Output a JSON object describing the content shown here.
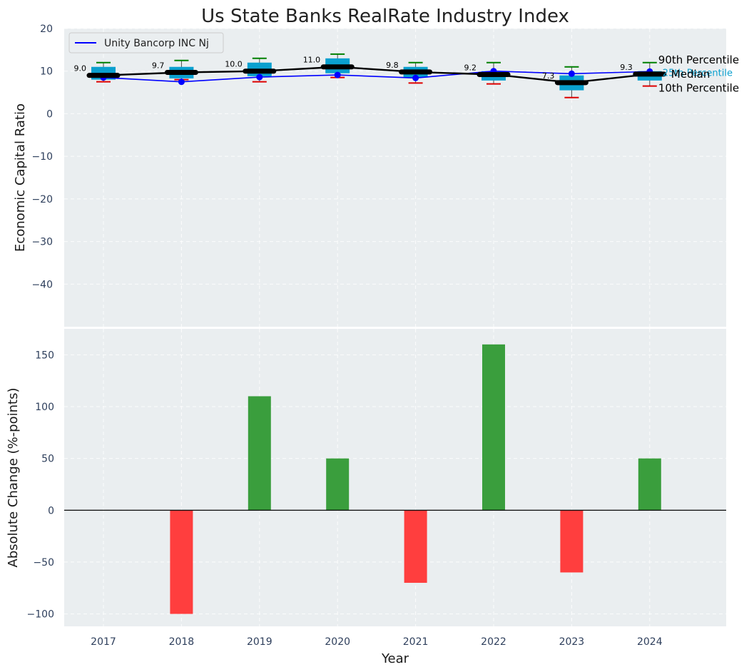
{
  "title": "Us State Banks RealRate Industry Index",
  "colors": {
    "panel_bg": "#eaeef0",
    "box": "#0aa0cf",
    "median_line": "#000000",
    "company_line": "#0000ff",
    "p90_cap": "#008000",
    "p10_cap": "#dd0000",
    "pos_bar": "#3a9e3d",
    "neg_bar": "#ff3e3e",
    "p25_label": "#0aa0cf"
  },
  "chart_data": [
    {
      "type": "box",
      "ylabel": "Economic Capital Ratio",
      "ylim": [
        -50,
        20
      ],
      "yticks": [
        20,
        10,
        0,
        -10,
        -20,
        -30,
        -40
      ],
      "ytick_labels": [
        "20",
        "10",
        "0",
        "−10",
        "−20",
        "−30",
        "−40"
      ],
      "categories": [
        "2017",
        "2018",
        "2019",
        "2020",
        "2021",
        "2022",
        "2023",
        "2024"
      ],
      "median": [
        9.0,
        9.7,
        10.0,
        11.0,
        9.8,
        9.2,
        7.3,
        9.3
      ],
      "median_labels": [
        "9.0",
        "9.7",
        "10.0",
        "11.0",
        "9.8",
        "9.2",
        "7.3",
        "9.3"
      ],
      "q1": [
        8.0,
        8.3,
        8.8,
        9.5,
        8.5,
        7.8,
        5.5,
        7.8
      ],
      "q3": [
        11.0,
        11.0,
        12.0,
        13.0,
        11.0,
        10.0,
        9.0,
        10.0
      ],
      "p10": [
        7.5,
        8.0,
        7.5,
        8.5,
        7.2,
        7.0,
        3.8,
        6.5
      ],
      "p90": [
        12.0,
        12.5,
        13.0,
        14.0,
        12.0,
        12.0,
        11.0,
        12.0
      ],
      "series": [
        {
          "name": "Unity Bancorp INC Nj",
          "values": [
            8.5,
            7.5,
            8.6,
            9.1,
            8.4,
            10.0,
            9.4,
            9.9
          ]
        }
      ],
      "annotations": {
        "p90": "90th Percentile",
        "median": "Median",
        "p25": "25th Percentile",
        "p10": "10th Percentile"
      },
      "legend": "top-left"
    },
    {
      "type": "bar",
      "xlabel": "Year",
      "ylabel": "Absolute Change (%-points)",
      "ylim": [
        -112,
        175
      ],
      "yticks": [
        150,
        100,
        50,
        0,
        -50,
        -100
      ],
      "ytick_labels": [
        "150",
        "100",
        "50",
        "0",
        "−50",
        "−100"
      ],
      "categories": [
        "2017",
        "2018",
        "2019",
        "2020",
        "2021",
        "2022",
        "2023",
        "2024"
      ],
      "values": [
        0,
        -100,
        110,
        50,
        -70,
        160,
        -60,
        50
      ]
    }
  ]
}
